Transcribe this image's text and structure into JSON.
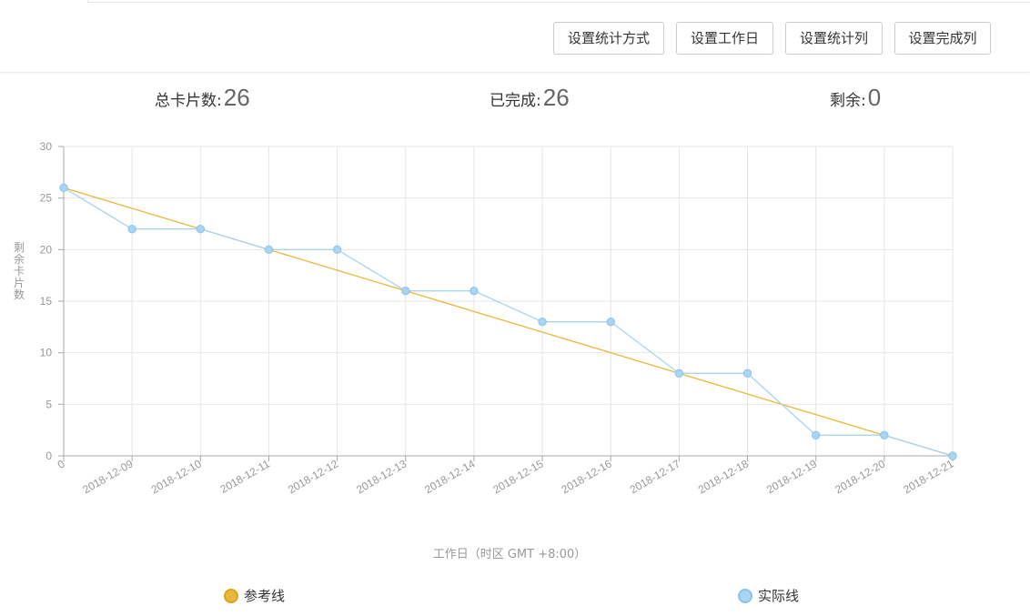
{
  "toolbar": {
    "buttons": [
      {
        "label": "设置统计方式"
      },
      {
        "label": "设置工作日"
      },
      {
        "label": "设置统计列"
      },
      {
        "label": "设置完成列"
      }
    ]
  },
  "stats": {
    "total_label": "总卡片数:",
    "total_value": "26",
    "done_label": "已完成:",
    "done_value": "26",
    "remaining_label": "剩余:",
    "remaining_value": "0"
  },
  "colors": {
    "reference": "#e8b83a",
    "actual": "#a9d4f2",
    "actual_border": "#8cc3ea",
    "grid": "#e6e6e6",
    "axis": "#aaaaaa",
    "tick_text": "#999999"
  },
  "chart_data": {
    "type": "line",
    "xlabel": "工作日（时区 GMT +8:00）",
    "ylabel": "剩余卡片数",
    "x": [
      "0",
      "2018-12-09",
      "2018-12-10",
      "2018-12-11",
      "2018-12-12",
      "2018-12-13",
      "2018-12-14",
      "2018-12-15",
      "2018-12-16",
      "2018-12-17",
      "2018-12-18",
      "2018-12-19",
      "2018-12-20",
      "2018-12-21"
    ],
    "ylim": [
      0,
      30
    ],
    "yticks": [
      0,
      5,
      10,
      15,
      20,
      25,
      30
    ],
    "grid": true,
    "legend_position": "bottom",
    "series": [
      {
        "name": "参考线",
        "values": [
          26,
          24,
          22,
          20,
          18,
          16,
          14,
          12,
          10,
          8,
          6,
          4,
          2,
          0
        ]
      },
      {
        "name": "实际线",
        "values": [
          26,
          22,
          22,
          20,
          20,
          16,
          16,
          13,
          13,
          8,
          8,
          2,
          2,
          0
        ]
      }
    ]
  }
}
